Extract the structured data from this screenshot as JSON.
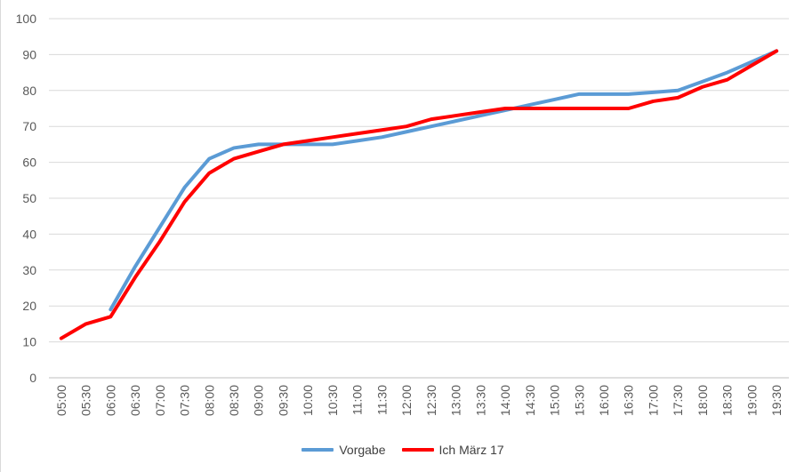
{
  "chart_data": {
    "type": "line",
    "categories": [
      "05:00",
      "05:30",
      "06:00",
      "06:30",
      "07:00",
      "07:30",
      "08:00",
      "08:30",
      "09:00",
      "09:30",
      "10:00",
      "10:30",
      "11:00",
      "11:30",
      "12:00",
      "12:30",
      "13:00",
      "13:30",
      "14:00",
      "14:30",
      "15:00",
      "15:30",
      "16:00",
      "16:30",
      "17:00",
      "17:30",
      "18:00",
      "18:30",
      "19:00",
      "19:30"
    ],
    "ylim": [
      0,
      100
    ],
    "yticks": [
      "0",
      "10",
      "20",
      "30",
      "40",
      "50",
      "60",
      "70",
      "80",
      "90",
      "100"
    ],
    "grid": true,
    "legend_placement": "bottom",
    "series": [
      {
        "name": "Vorgabe",
        "color": "#5b9bd5",
        "values": [
          null,
          null,
          19,
          31,
          42,
          53,
          61,
          64,
          65,
          65,
          65,
          65,
          66,
          67,
          68.5,
          70,
          71.5,
          73,
          74.5,
          76,
          77.5,
          79,
          79,
          79,
          79.5,
          80,
          82.5,
          85,
          88,
          91
        ]
      },
      {
        "name": "Ich März 17",
        "color": "#ff0000",
        "values": [
          11,
          15,
          17,
          28,
          38,
          49,
          57,
          61,
          63,
          65,
          66,
          67,
          68,
          69,
          70,
          72,
          73,
          74,
          75,
          75,
          75,
          75,
          75,
          75,
          77,
          78,
          81,
          83,
          87,
          91
        ]
      }
    ]
  }
}
